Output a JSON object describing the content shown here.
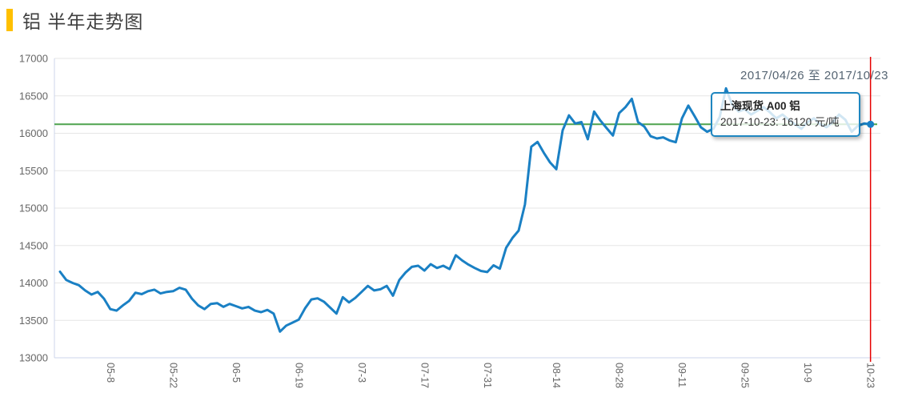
{
  "header": {
    "title": "铝 半年走势图",
    "accent_color": "#ffc000"
  },
  "tooltip": {
    "series": "上海现货 A00 铝",
    "value_text": "2017-10-23: 16120 元/吨",
    "date": "2017-10-23",
    "value": 16120,
    "unit": "元/吨"
  },
  "colors": {
    "line": "#1a80c4",
    "reference_line": "#4fa34f",
    "cursor_line": "#e60000",
    "grid": "#e6e6e6",
    "axis_border": "#ccd6eb",
    "tick_label": "#666666",
    "date_label": "#566573"
  },
  "chart_data": {
    "type": "line",
    "title": "铝 半年走势图",
    "series_name": "上海现货 A00 铝",
    "date_range_label": "2017/04/26 至 2017/10/23",
    "start_date": "2017-04-26",
    "end_date": "2017-10-23",
    "unit": "元/吨",
    "current_value": 16120,
    "ylim": [
      13000,
      17000
    ],
    "y_ticks": [
      13000,
      13500,
      14000,
      14500,
      15000,
      15500,
      16000,
      16500,
      17000
    ],
    "x_tick_labels": [
      "05-8",
      "05-22",
      "06-5",
      "06-19",
      "07-3",
      "07-17",
      "07-31",
      "08-14",
      "08-28",
      "09-11",
      "09-25",
      "10-9",
      "10-23"
    ],
    "x_tick_indices": [
      8,
      18,
      28,
      38,
      48,
      58,
      68,
      79,
      89,
      99,
      109,
      119,
      129
    ],
    "reference_line": {
      "value": 16120
    },
    "cursor_at_label": "10-23",
    "grid": true,
    "values": [
      14150,
      14040,
      14000,
      13970,
      13900,
      13845,
      13880,
      13790,
      13650,
      13630,
      13700,
      13760,
      13870,
      13850,
      13890,
      13910,
      13860,
      13880,
      13890,
      13935,
      13910,
      13790,
      13700,
      13650,
      13720,
      13730,
      13680,
      13720,
      13690,
      13660,
      13680,
      13630,
      13610,
      13640,
      13590,
      13350,
      13430,
      13470,
      13510,
      13660,
      13780,
      13795,
      13750,
      13670,
      13590,
      13810,
      13740,
      13800,
      13880,
      13960,
      13900,
      13915,
      13960,
      13830,
      14040,
      14140,
      14215,
      14230,
      14165,
      14250,
      14200,
      14230,
      14185,
      14370,
      14300,
      14245,
      14200,
      14160,
      14145,
      14235,
      14190,
      14470,
      14600,
      14700,
      15050,
      15820,
      15885,
      15740,
      15610,
      15520,
      16040,
      16240,
      16130,
      16150,
      15920,
      16290,
      16170,
      16070,
      15970,
      16270,
      16350,
      16460,
      16150,
      16090,
      15960,
      15930,
      15945,
      15905,
      15880,
      16200,
      16370,
      16230,
      16080,
      16020,
      16060,
      16220,
      16600,
      16380,
      16290,
      16320,
      16250,
      16300,
      16350,
      16280,
      16200,
      16250,
      16180,
      16120,
      16060,
      16150,
      16200,
      16120,
      16080,
      16150,
      16250,
      16180,
      16020,
      16100,
      16130,
      16120
    ]
  }
}
